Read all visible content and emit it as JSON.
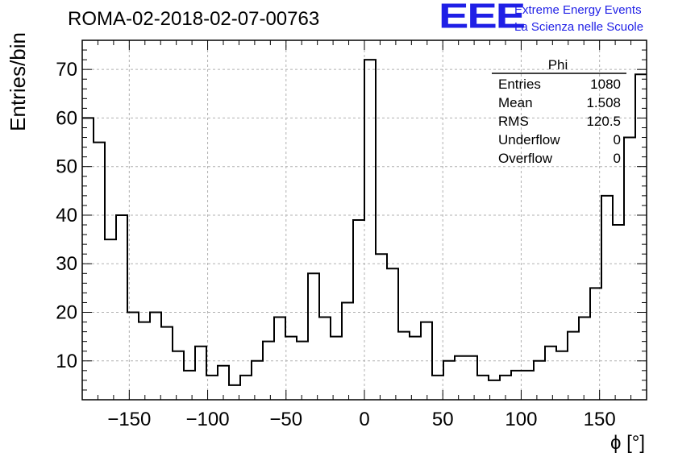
{
  "header": {
    "run_title": "ROMA-02-2018-02-07-00763",
    "logo_text": "EEE",
    "logo_line1": "Extreme Energy Events",
    "logo_line2": "La Scienza nelle Scuole"
  },
  "colors": {
    "logo": "#1f1fe6",
    "line": "#000000",
    "grid": "#b0b0b0"
  },
  "stats": {
    "title": "Phi",
    "rows": [
      {
        "label": "Entries",
        "value": "1080"
      },
      {
        "label": "Mean",
        "value": "1.508"
      },
      {
        "label": "RMS",
        "value": "120.5"
      },
      {
        "label": "Underflow",
        "value": "0"
      },
      {
        "label": "Overflow",
        "value": "0"
      }
    ]
  },
  "chart_data": {
    "type": "histogram",
    "title": "ROMA-02-2018-02-07-00763",
    "xlabel": "ϕ [°]",
    "ylabel": "Entries/bin",
    "xlim": [
      -180,
      180
    ],
    "ylim": [
      2,
      76
    ],
    "grid": true,
    "bin_width": 7.2,
    "x_ticks": [
      -150,
      -100,
      -50,
      0,
      50,
      100,
      150
    ],
    "x_tick_labels": [
      "−150",
      "−100",
      "−50",
      "0",
      "50",
      "100",
      "150"
    ],
    "y_ticks": [
      10,
      20,
      30,
      40,
      50,
      60,
      70
    ],
    "y_tick_labels": [
      "10",
      "20",
      "30",
      "40",
      "50",
      "60",
      "70"
    ],
    "counts": [
      60,
      55,
      35,
      40,
      20,
      18,
      20,
      17,
      12,
      8,
      13,
      7,
      9,
      5,
      7,
      10,
      14,
      19,
      15,
      14,
      28,
      19,
      15,
      22,
      39,
      72,
      32,
      29,
      16,
      15,
      18,
      7,
      10,
      11,
      11,
      7,
      6,
      7,
      8,
      8,
      10,
      13,
      12,
      16,
      19,
      25,
      44,
      38,
      56,
      69
    ]
  }
}
